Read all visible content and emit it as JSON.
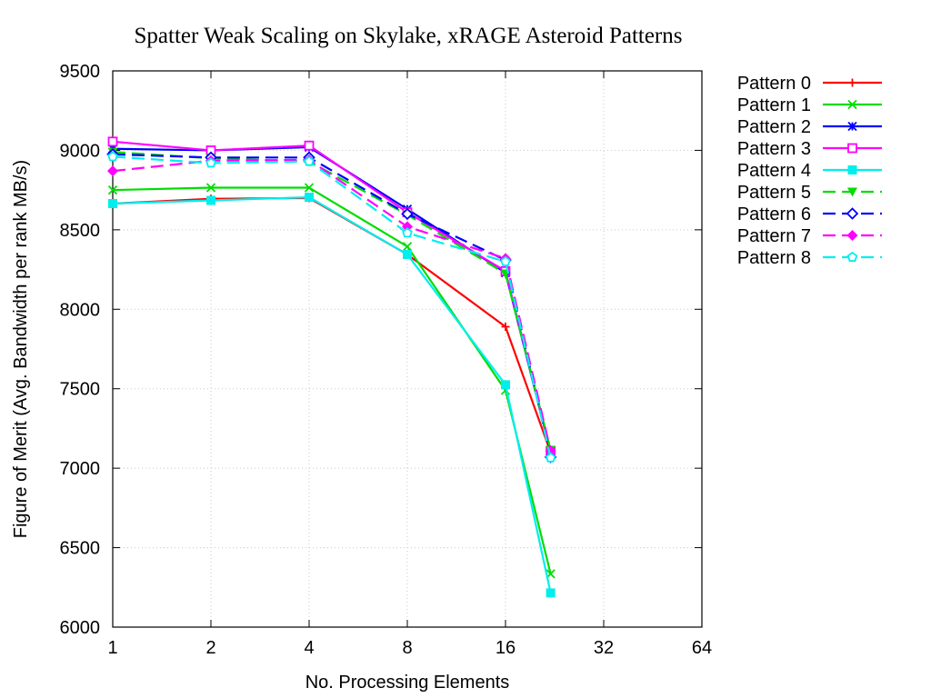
{
  "chart_data": {
    "type": "line",
    "title": "Spatter Weak Scaling on Skylake, xRAGE Asteroid Patterns",
    "xlabel": "No. Processing Elements",
    "ylabel": "Figure of Merit (Avg. Bandwidth per rank MB/s)",
    "x_scale": "log2",
    "xlim": [
      1,
      64
    ],
    "ylim": [
      6000,
      9500
    ],
    "x_ticks": [
      1,
      2,
      4,
      8,
      16,
      32,
      64
    ],
    "x_tick_labels": [
      "1",
      "2",
      "4",
      "8",
      "16",
      "32",
      "64"
    ],
    "y_ticks": [
      6000,
      6500,
      7000,
      7500,
      8000,
      8500,
      9000,
      9500
    ],
    "y_tick_labels": [
      "6000",
      "6500",
      "7000",
      "7500",
      "8000",
      "8500",
      "9000",
      "9500"
    ],
    "grid": true,
    "legend_position": "outside-right",
    "x": [
      1,
      2,
      4,
      8,
      16,
      22
    ],
    "series": [
      {
        "name": "Pattern 0",
        "color": "#ff0000",
        "dash": "solid",
        "marker": "plus",
        "values": [
          8665,
          8695,
          8700,
          8345,
          7890,
          7100
        ]
      },
      {
        "name": "Pattern 1",
        "color": "#00dd00",
        "dash": "solid",
        "marker": "cross",
        "values": [
          8750,
          8765,
          8765,
          8395,
          7490,
          6335
        ]
      },
      {
        "name": "Pattern 2",
        "color": "#0000ff",
        "dash": "solid",
        "marker": "star",
        "values": [
          9010,
          9000,
          9020,
          8630,
          8230,
          7100
        ]
      },
      {
        "name": "Pattern 3",
        "color": "#ff00ff",
        "dash": "solid",
        "marker": "open-square",
        "values": [
          9055,
          9000,
          9030,
          8610,
          8240,
          7110
        ]
      },
      {
        "name": "Pattern 4",
        "color": "#00eeee",
        "dash": "solid",
        "marker": "filled-square",
        "values": [
          8665,
          8685,
          8705,
          8345,
          7525,
          6215
        ]
      },
      {
        "name": "Pattern 5",
        "color": "#00dd00",
        "dash": "dash",
        "marker": "filled-triangle-down",
        "values": [
          8990,
          8950,
          8930,
          8595,
          8225,
          7115
        ]
      },
      {
        "name": "Pattern 6",
        "color": "#0000ff",
        "dash": "dash",
        "marker": "open-diamond",
        "values": [
          8975,
          8955,
          8955,
          8600,
          8310,
          7070
        ]
      },
      {
        "name": "Pattern 7",
        "color": "#ff00ff",
        "dash": "dash",
        "marker": "filled-diamond",
        "values": [
          8870,
          8935,
          8940,
          8520,
          8320,
          7110
        ]
      },
      {
        "name": "Pattern 8",
        "color": "#00eeee",
        "dash": "dash",
        "marker": "open-pentagon",
        "values": [
          8960,
          8920,
          8930,
          8480,
          8300,
          7065
        ]
      }
    ]
  }
}
